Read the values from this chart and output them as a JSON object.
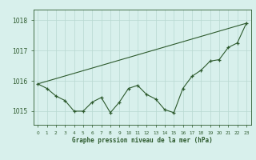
{
  "hours": [
    0,
    1,
    2,
    3,
    4,
    5,
    6,
    7,
    8,
    9,
    10,
    11,
    12,
    13,
    14,
    15,
    16,
    17,
    18,
    19,
    20,
    21,
    22,
    23
  ],
  "pressure": [
    1015.9,
    1015.75,
    1015.5,
    1015.35,
    1015.0,
    1015.0,
    1015.3,
    1015.45,
    1014.95,
    1015.3,
    1015.75,
    1015.85,
    1015.55,
    1015.4,
    1015.05,
    1014.95,
    1015.75,
    1016.15,
    1016.35,
    1016.65,
    1016.7,
    1017.1,
    1017.25,
    1017.9
  ],
  "trend_x": [
    0,
    23
  ],
  "trend_y": [
    1015.9,
    1017.9
  ],
  "bg_color": "#d8f0ec",
  "line_color": "#2d5a2d",
  "grid_color": "#b8d8d0",
  "text_color": "#2d5a2d",
  "xlabel": "Graphe pression niveau de la mer (hPa)",
  "yticks": [
    1015,
    1016,
    1017,
    1018
  ],
  "ylim": [
    1014.55,
    1018.35
  ],
  "xlim": [
    -0.5,
    23.5
  ],
  "xtick_labels": [
    "0",
    "1",
    "2",
    "3",
    "4",
    "5",
    "6",
    "7",
    "8",
    "9",
    "10",
    "11",
    "12",
    "13",
    "14",
    "15",
    "16",
    "17",
    "18",
    "19",
    "20",
    "21",
    "22",
    "23"
  ]
}
